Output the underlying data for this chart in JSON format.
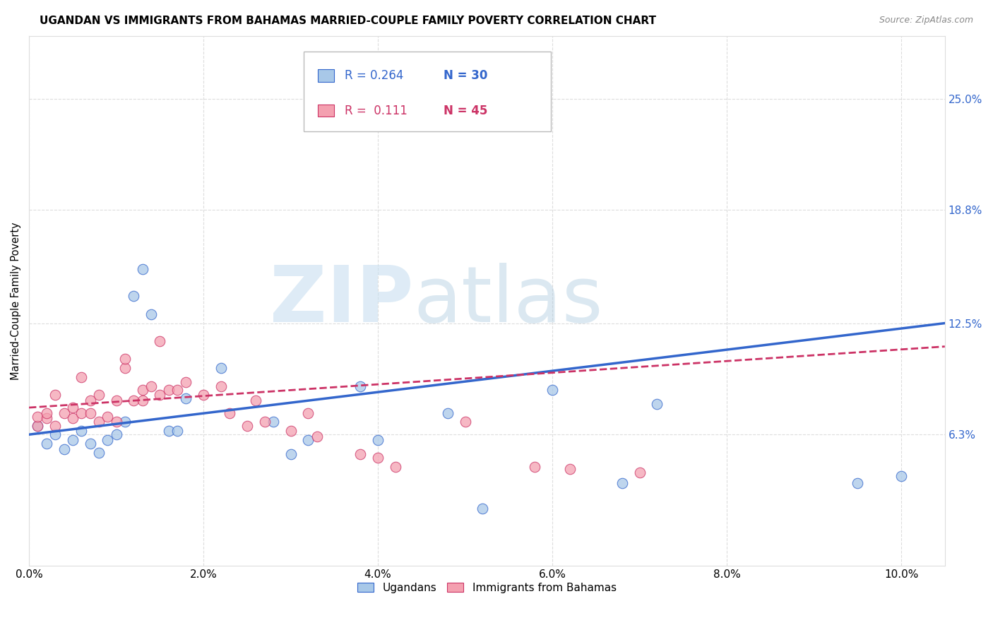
{
  "title": "UGANDAN VS IMMIGRANTS FROM BAHAMAS MARRIED-COUPLE FAMILY POVERTY CORRELATION CHART",
  "source": "Source: ZipAtlas.com",
  "ylabel": "Married-Couple Family Poverty",
  "ytick_labels": [
    "25.0%",
    "18.8%",
    "12.5%",
    "6.3%"
  ],
  "ytick_values": [
    0.25,
    0.188,
    0.125,
    0.063
  ],
  "xtick_labels": [
    "0.0%",
    "2.0%",
    "4.0%",
    "6.0%",
    "8.0%",
    "10.0%"
  ],
  "xtick_values": [
    0.0,
    0.02,
    0.04,
    0.06,
    0.08,
    0.1
  ],
  "xlim": [
    0.0,
    0.105
  ],
  "ylim": [
    -0.01,
    0.285
  ],
  "color_blue": "#a8c8e8",
  "color_pink": "#f4a0b0",
  "color_line_blue": "#3366cc",
  "color_line_pink": "#cc3366",
  "ugandans_x": [
    0.001,
    0.002,
    0.003,
    0.004,
    0.005,
    0.006,
    0.007,
    0.008,
    0.009,
    0.01,
    0.011,
    0.012,
    0.013,
    0.014,
    0.016,
    0.017,
    0.018,
    0.022,
    0.028,
    0.03,
    0.032,
    0.038,
    0.04,
    0.048,
    0.052,
    0.06,
    0.068,
    0.072,
    0.095,
    0.1
  ],
  "ugandans_y": [
    0.068,
    0.058,
    0.063,
    0.055,
    0.06,
    0.065,
    0.058,
    0.053,
    0.06,
    0.063,
    0.07,
    0.14,
    0.155,
    0.13,
    0.065,
    0.065,
    0.083,
    0.1,
    0.07,
    0.052,
    0.06,
    0.09,
    0.06,
    0.075,
    0.022,
    0.088,
    0.036,
    0.08,
    0.036,
    0.04
  ],
  "bahamas_x": [
    0.001,
    0.001,
    0.002,
    0.002,
    0.003,
    0.003,
    0.004,
    0.005,
    0.005,
    0.006,
    0.006,
    0.007,
    0.007,
    0.008,
    0.008,
    0.009,
    0.01,
    0.01,
    0.011,
    0.011,
    0.012,
    0.013,
    0.013,
    0.014,
    0.015,
    0.015,
    0.016,
    0.017,
    0.018,
    0.02,
    0.022,
    0.023,
    0.025,
    0.026,
    0.027,
    0.03,
    0.032,
    0.033,
    0.038,
    0.04,
    0.042,
    0.05,
    0.058,
    0.062,
    0.07
  ],
  "bahamas_y": [
    0.068,
    0.073,
    0.072,
    0.075,
    0.085,
    0.068,
    0.075,
    0.072,
    0.078,
    0.075,
    0.095,
    0.082,
    0.075,
    0.07,
    0.085,
    0.073,
    0.082,
    0.07,
    0.1,
    0.105,
    0.082,
    0.088,
    0.082,
    0.09,
    0.115,
    0.085,
    0.088,
    0.088,
    0.092,
    0.085,
    0.09,
    0.075,
    0.068,
    0.082,
    0.07,
    0.065,
    0.075,
    0.062,
    0.052,
    0.05,
    0.045,
    0.07,
    0.045,
    0.044,
    0.042
  ]
}
